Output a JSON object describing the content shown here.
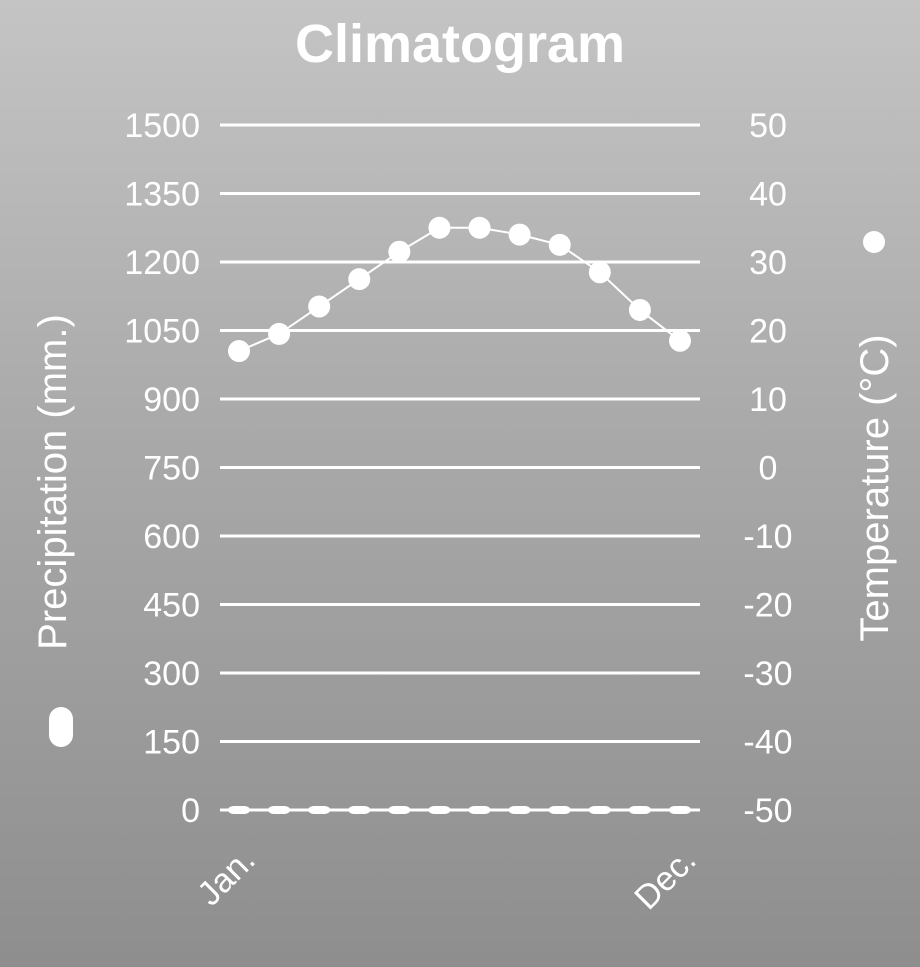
{
  "chart_data": {
    "type": "bar+line",
    "title": "Climatogram",
    "categories": [
      "Jan.",
      "",
      "",
      "",
      "",
      "",
      "",
      "",
      "",
      "",
      "",
      "Dec."
    ],
    "left_axis": {
      "label": "Precipitation (mm.)",
      "ylim": [
        0,
        1500
      ],
      "ticks": [
        1500,
        1350,
        1200,
        1050,
        900,
        750,
        600,
        450,
        300,
        150,
        0
      ]
    },
    "right_axis": {
      "label": "Temperature (°C)",
      "ylim": [
        -50,
        50
      ],
      "ticks": [
        50,
        40,
        30,
        20,
        10,
        0,
        -10,
        -20,
        -30,
        -40,
        -50
      ]
    },
    "series": [
      {
        "name": "Precipitation (mm.)",
        "type": "bar",
        "axis": "left",
        "values": [
          0,
          0,
          0,
          0,
          0,
          0,
          0,
          5,
          5,
          0,
          0,
          0
        ]
      },
      {
        "name": "Temperature (°C)",
        "type": "line",
        "axis": "right",
        "values": [
          17,
          19.5,
          23.5,
          27.5,
          31.5,
          35,
          35,
          34,
          32.5,
          28.5,
          23,
          18.5
        ]
      }
    ],
    "grid": true,
    "colors": {
      "marks": "#ffffff",
      "background_top": "#c4c4c4",
      "background_bottom": "#8e8e8e"
    }
  }
}
